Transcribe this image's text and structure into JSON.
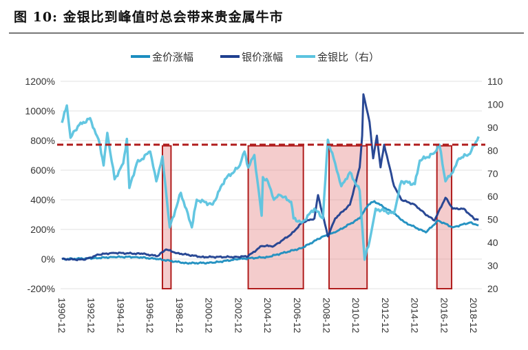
{
  "title": "图 10:  金银比到峰值时总会带来贵金属牛市",
  "chart_data": {
    "type": "line",
    "title": "图 10:  金银比到峰值时总会带来贵金属牛市",
    "legend_position": "top",
    "grid": true,
    "x_ticks": [
      "1990-12",
      "1992-12",
      "1994-12",
      "1996-12",
      "1998-12",
      "2000-12",
      "2002-12",
      "2004-12",
      "2006-12",
      "2008-12",
      "2010-12",
      "2012-12",
      "2014-12",
      "2016-12",
      "2018-12"
    ],
    "y_left": {
      "ticks": [
        "1200%",
        "1000%",
        "800%",
        "600%",
        "400%",
        "200%",
        "0%",
        "-200%"
      ],
      "range": [
        -200,
        1200
      ],
      "unit": "%"
    },
    "y_right": {
      "ticks": [
        "110",
        "100",
        "90",
        "80",
        "70",
        "60",
        "50",
        "40",
        "30",
        "20"
      ],
      "range": [
        20,
        110
      ]
    },
    "series": [
      {
        "name": "金价涨幅",
        "axis": "left",
        "color": "#1b8dbf",
        "points": [
          [
            "1990-12",
            0
          ],
          [
            "1993-01",
            5
          ],
          [
            "1994-06",
            14
          ],
          [
            "1996-01",
            14
          ],
          [
            "1997-06",
            0
          ],
          [
            "1999-06",
            -28
          ],
          [
            "2001-03",
            -25
          ],
          [
            "2002-12",
            0
          ],
          [
            "2004-12",
            14
          ],
          [
            "2007-04",
            75
          ],
          [
            "2008-09",
            153
          ],
          [
            "2009-07",
            180
          ],
          [
            "2011-03",
            275
          ],
          [
            "2011-10",
            367
          ],
          [
            "2012-03",
            390
          ],
          [
            "2013-07",
            307
          ],
          [
            "2014-04",
            247
          ],
          [
            "2015-09",
            180
          ],
          [
            "2016-07",
            260
          ],
          [
            "2017-07",
            214
          ],
          [
            "2018-09",
            247
          ],
          [
            "2019-04",
            228
          ]
        ]
      },
      {
        "name": "银价涨幅",
        "axis": "left",
        "color": "#1f3f8f",
        "points": [
          [
            "1990-12",
            0
          ],
          [
            "1992-06",
            -5
          ],
          [
            "1993-06",
            30
          ],
          [
            "1994-06",
            42
          ],
          [
            "1996-06",
            35
          ],
          [
            "1997-06",
            20
          ],
          [
            "1998-01",
            65
          ],
          [
            "1998-10",
            40
          ],
          [
            "2000-06",
            14
          ],
          [
            "2002-12",
            14
          ],
          [
            "2003-08",
            20
          ],
          [
            "2004-07",
            88
          ],
          [
            "2005-05",
            88
          ],
          [
            "2006-07",
            167
          ],
          [
            "2007-04",
            247
          ],
          [
            "2008-02",
            274
          ],
          [
            "2008-05",
            432
          ],
          [
            "2009-01",
            153
          ],
          [
            "2009-07",
            274
          ],
          [
            "2010-07",
            367
          ],
          [
            "2011-03",
            619
          ],
          [
            "2011-05",
            833
          ],
          [
            "2011-06",
            1112
          ],
          [
            "2011-11",
            926
          ],
          [
            "2012-02",
            680
          ],
          [
            "2012-05",
            833
          ],
          [
            "2012-08",
            619
          ],
          [
            "2012-11",
            772
          ],
          [
            "2013-07",
            493
          ],
          [
            "2014-01",
            400
          ],
          [
            "2014-12",
            367
          ],
          [
            "2015-08",
            307
          ],
          [
            "2016-04",
            260
          ],
          [
            "2017-01",
            414
          ],
          [
            "2017-07",
            340
          ],
          [
            "2018-04",
            340
          ],
          [
            "2018-12",
            274
          ],
          [
            "2019-04",
            265
          ]
        ]
      },
      {
        "name": "金银比（右）",
        "axis": "right",
        "color": "#5bc3df",
        "points": [
          [
            "1990-12",
            92
          ],
          [
            "1991-04",
            99.5
          ],
          [
            "1991-07",
            85.5
          ],
          [
            "1992-01",
            90.5
          ],
          [
            "1992-11",
            94
          ],
          [
            "1993-07",
            82.5
          ],
          [
            "1993-10",
            73.5
          ],
          [
            "1994-01",
            87.6
          ],
          [
            "1994-07",
            67.5
          ],
          [
            "1995-02",
            74.4
          ],
          [
            "1995-05",
            85
          ],
          [
            "1995-07",
            63.7
          ],
          [
            "1996-01",
            74.4
          ],
          [
            "1996-12",
            79.5
          ],
          [
            "1997-05",
            66.6
          ],
          [
            "1997-10",
            77.4
          ],
          [
            "1998-04",
            46.6
          ],
          [
            "1999-01",
            61.6
          ],
          [
            "1999-10",
            46.6
          ],
          [
            "2000-02",
            58.6
          ],
          [
            "2001-03",
            56.5
          ],
          [
            "2002-01",
            67.5
          ],
          [
            "2002-12",
            72.6
          ],
          [
            "2003-05",
            79.5
          ],
          [
            "2003-08",
            72.6
          ],
          [
            "2004-01",
            78
          ],
          [
            "2004-07",
            51.7
          ],
          [
            "2004-08",
            68.4
          ],
          [
            "2004-12",
            66.6
          ],
          [
            "2005-05",
            58.6
          ],
          [
            "2005-10",
            60.6
          ],
          [
            "2006-07",
            57.7
          ],
          [
            "2006-09",
            50.5
          ],
          [
            "2007-04",
            48.7
          ],
          [
            "2008-02",
            54.7
          ],
          [
            "2008-09",
            50.5
          ],
          [
            "2009-01",
            84.6
          ],
          [
            "2009-07",
            74.4
          ],
          [
            "2009-12",
            64.5
          ],
          [
            "2010-07",
            70.5
          ],
          [
            "2011-03",
            62.5
          ],
          [
            "2011-07",
            32.6
          ],
          [
            "2011-11",
            40.6
          ],
          [
            "2012-04",
            54.7
          ],
          [
            "2013-07",
            52.6
          ],
          [
            "2014-01",
            66.6
          ],
          [
            "2014-12",
            65.4
          ],
          [
            "2015-04",
            75.6
          ],
          [
            "2016-03",
            78.5
          ],
          [
            "2016-08",
            82.5
          ],
          [
            "2017-01",
            66.6
          ],
          [
            "2017-07",
            70.5
          ],
          [
            "2017-12",
            76.5
          ],
          [
            "2018-09",
            78.5
          ],
          [
            "2019-04",
            86
          ]
        ]
      }
    ],
    "reference_line": {
      "axis": "right",
      "value": 82.5,
      "style": "dashed",
      "color": "#b01c1c"
    },
    "highlight_periods": [
      {
        "start": "1997-10",
        "end": "1998-05"
      },
      {
        "start": "2003-08",
        "end": "2007-05"
      },
      {
        "start": "2009-02",
        "end": "2011-09"
      },
      {
        "start": "2016-06",
        "end": "2017-06"
      }
    ],
    "highlight_color": "#b01c1c"
  }
}
